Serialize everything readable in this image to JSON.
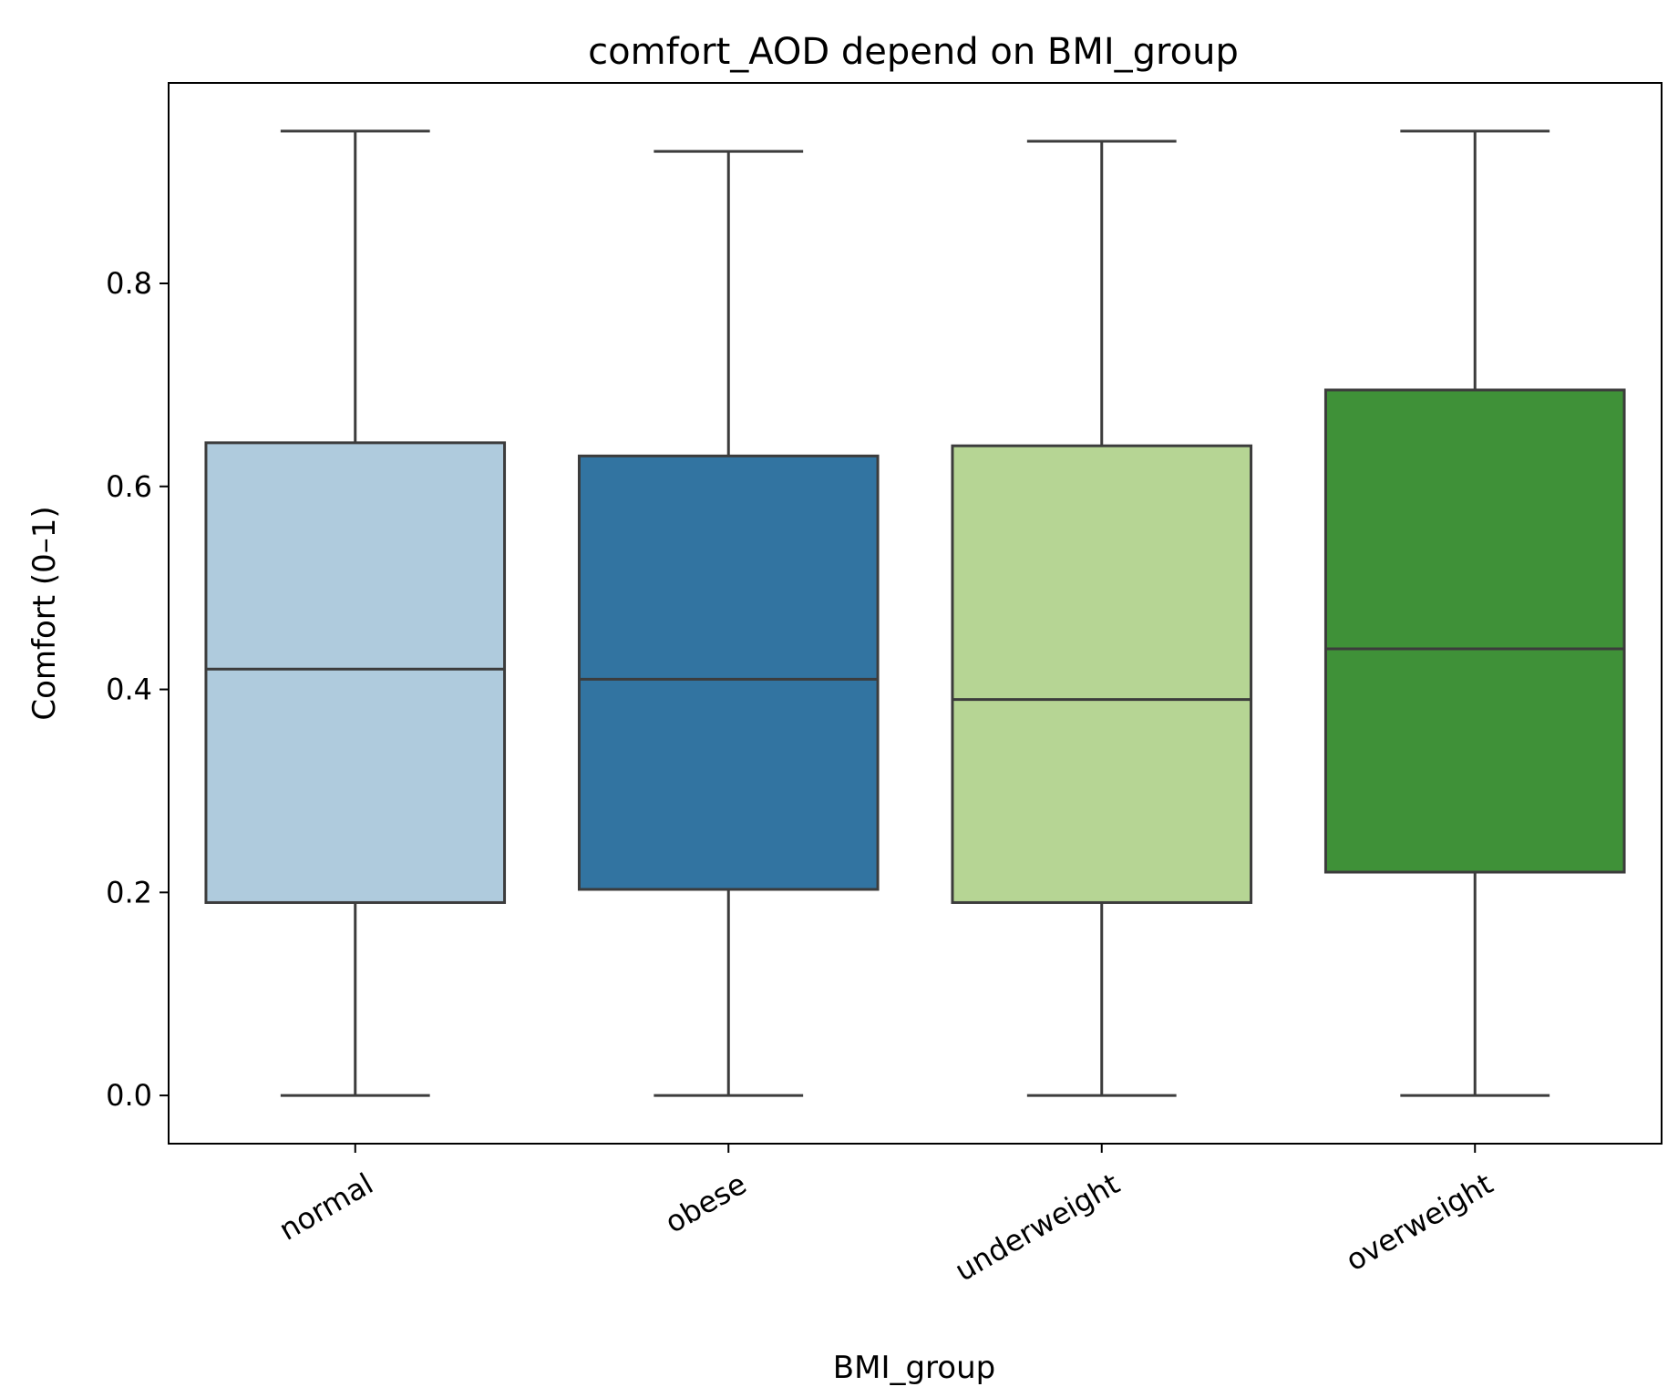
{
  "chart_data": {
    "type": "box",
    "title": "comfort_AOD depend on BMI_group",
    "xlabel": "BMI_group",
    "ylabel": "Comfort (0–1)",
    "ylim": [
      -0.0475,
      0.9975
    ],
    "yticks": [
      0.0,
      0.2,
      0.4,
      0.6,
      0.8
    ],
    "ytick_labels": [
      "0.0",
      "0.2",
      "0.4",
      "0.6",
      "0.8"
    ],
    "categories": [
      "normal",
      "obese",
      "underweight",
      "overweight"
    ],
    "boxes": [
      {
        "category": "normal",
        "whisker_low": 0.0,
        "q1": 0.19,
        "median": 0.42,
        "q3": 0.643,
        "whisker_high": 0.95,
        "color": "#afcbdd"
      },
      {
        "category": "obese",
        "whisker_low": 0.0,
        "q1": 0.203,
        "median": 0.41,
        "q3": 0.63,
        "whisker_high": 0.93,
        "color": "#3274a1"
      },
      {
        "category": "underweight",
        "whisker_low": 0.0,
        "q1": 0.19,
        "median": 0.39,
        "q3": 0.64,
        "whisker_high": 0.94,
        "color": "#b6d594"
      },
      {
        "category": "overweight",
        "whisker_low": 0.0,
        "q1": 0.22,
        "median": 0.44,
        "q3": 0.695,
        "whisker_high": 0.95,
        "color": "#3f9138"
      }
    ],
    "line_color": "#3c3c3c",
    "grid": false,
    "legend": "none"
  }
}
